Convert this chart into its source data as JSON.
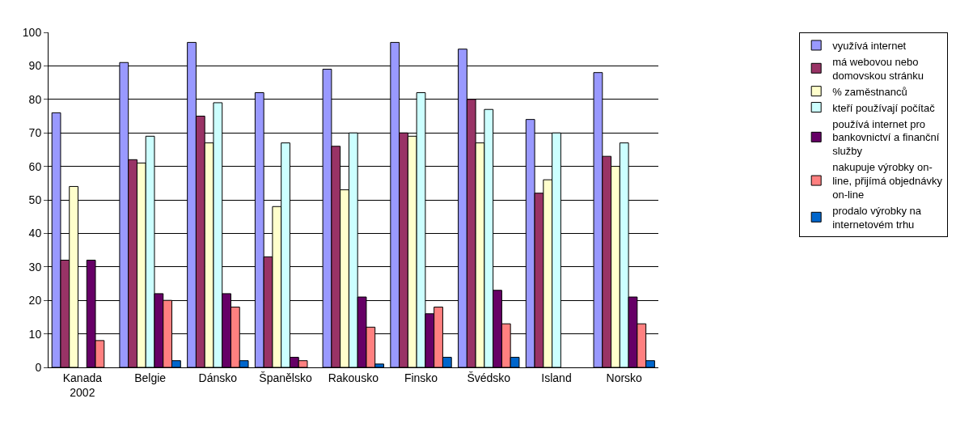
{
  "chart_data": {
    "type": "bar",
    "categories": [
      "Kanada\n2002",
      "Belgie",
      "Dánsko",
      "Španělsko",
      "Rakousko",
      "Finsko",
      "Švédsko",
      "Island",
      "Norsko"
    ],
    "series": [
      {
        "name": "využívá internet",
        "color": "#9999ff",
        "values": [
          76,
          91,
          97,
          82,
          89,
          97,
          95,
          74,
          88
        ]
      },
      {
        "name": "má webovou nebo domovskou stránku",
        "color": "#993366",
        "values": [
          32,
          62,
          75,
          33,
          66,
          70,
          80,
          52,
          63
        ]
      },
      {
        "name": "% zaměstnanců",
        "color": "#ffffcc",
        "values": [
          54,
          61,
          67,
          48,
          53,
          69,
          67,
          56,
          60
        ]
      },
      {
        "name": "kteří používají počítač",
        "color": "#ccffff",
        "values": [
          null,
          69,
          79,
          67,
          70,
          82,
          77,
          70,
          67
        ]
      },
      {
        "name": "používá internet pro bankovnictví a finanční služby",
        "color": "#660066",
        "values": [
          32,
          22,
          22,
          3,
          21,
          16,
          23,
          null,
          21
        ]
      },
      {
        "name": "nakupuje výrobky on-line, přijímá objednávky on-line",
        "color": "#ff8080",
        "values": [
          8,
          20,
          18,
          2,
          12,
          18,
          13,
          null,
          13
        ]
      },
      {
        "name": "prodalo výrobky na internetovém trhu",
        "color": "#0066cc",
        "values": [
          null,
          2,
          2,
          null,
          1,
          3,
          3,
          null,
          2
        ]
      }
    ],
    "ylim": [
      0,
      100
    ],
    "yticks": [
      0,
      10,
      20,
      30,
      40,
      50,
      60,
      70,
      80,
      90,
      100
    ],
    "grid": "y",
    "legend": "right"
  }
}
